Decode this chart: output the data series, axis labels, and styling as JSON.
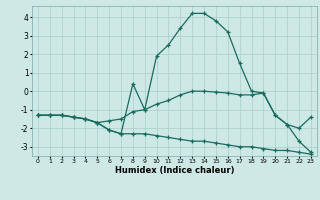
{
  "xlabel": "Humidex (Indice chaleur)",
  "background_color": "#cde8e5",
  "grid_color": "#aacfcc",
  "line_color": "#1a6b5e",
  "xlim": [
    -0.5,
    23.5
  ],
  "ylim": [
    -3.5,
    4.6
  ],
  "xticks": [
    0,
    1,
    2,
    3,
    4,
    5,
    6,
    7,
    8,
    9,
    10,
    11,
    12,
    13,
    14,
    15,
    16,
    17,
    18,
    19,
    20,
    21,
    22,
    23
  ],
  "yticks": [
    -3,
    -2,
    -1,
    0,
    1,
    2,
    3,
    4
  ],
  "line1_x": [
    0,
    1,
    2,
    3,
    4,
    5,
    6,
    7,
    8,
    9,
    10,
    11,
    12,
    13,
    14,
    15,
    16,
    17,
    18,
    19,
    20,
    21,
    22,
    23
  ],
  "line1_y": [
    -1.3,
    -1.3,
    -1.3,
    -1.4,
    -1.5,
    -1.7,
    -2.1,
    -2.3,
    -2.3,
    -2.3,
    -2.4,
    -2.5,
    -2.6,
    -2.7,
    -2.7,
    -2.8,
    -2.9,
    -3.0,
    -3.0,
    -3.1,
    -3.2,
    -3.2,
    -3.3,
    -3.4
  ],
  "line2_x": [
    0,
    1,
    2,
    3,
    4,
    5,
    6,
    7,
    8,
    9,
    10,
    11,
    12,
    13,
    14,
    15,
    16,
    17,
    18,
    19,
    20,
    21,
    22,
    23
  ],
  "line2_y": [
    -1.3,
    -1.3,
    -1.3,
    -1.4,
    -1.5,
    -1.7,
    -1.6,
    -1.5,
    -1.1,
    -1.0,
    -0.7,
    -0.5,
    -0.2,
    0.0,
    0.0,
    -0.05,
    -0.1,
    -0.2,
    -0.2,
    -0.1,
    -1.3,
    -1.8,
    -2.0,
    -1.4
  ],
  "line3_x": [
    0,
    1,
    2,
    3,
    4,
    5,
    6,
    7,
    8,
    9,
    10,
    11,
    12,
    13,
    14,
    15,
    16,
    17,
    18,
    19,
    20,
    21,
    22,
    23
  ],
  "line3_y": [
    -1.3,
    -1.3,
    -1.3,
    -1.4,
    -1.5,
    -1.7,
    -2.1,
    -2.3,
    0.4,
    -1.0,
    1.9,
    2.5,
    3.4,
    4.2,
    4.2,
    3.8,
    3.2,
    1.5,
    0.0,
    -0.1,
    -1.3,
    -1.8,
    -2.7,
    -3.3
  ]
}
